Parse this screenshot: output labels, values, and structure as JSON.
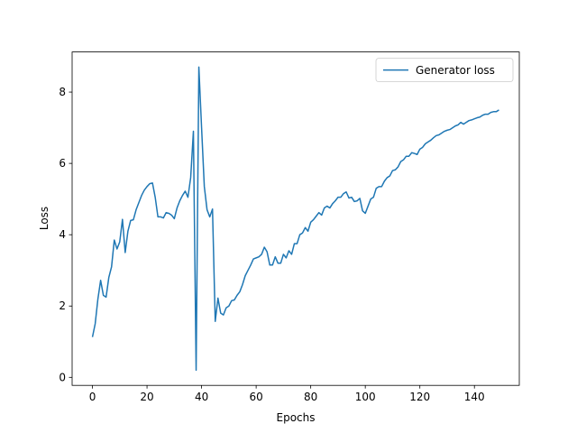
{
  "chart_data": {
    "type": "line",
    "xlabel": "Epochs",
    "ylabel": "Loss",
    "x": [
      0,
      1,
      2,
      3,
      4,
      5,
      6,
      7,
      8,
      9,
      10,
      11,
      12,
      13,
      14,
      15,
      16,
      17,
      18,
      19,
      20,
      21,
      22,
      23,
      24,
      25,
      26,
      27,
      28,
      29,
      30,
      31,
      32,
      33,
      34,
      35,
      36,
      37,
      38,
      39,
      40,
      41,
      42,
      43,
      44,
      45,
      46,
      47,
      48,
      49,
      50,
      51,
      52,
      53,
      54,
      55,
      56,
      57,
      58,
      59,
      60,
      61,
      62,
      63,
      64,
      65,
      66,
      67,
      68,
      69,
      70,
      71,
      72,
      73,
      74,
      75,
      76,
      77,
      78,
      79,
      80,
      81,
      82,
      83,
      84,
      85,
      86,
      87,
      88,
      89,
      90,
      91,
      92,
      93,
      94,
      95,
      96,
      97,
      98,
      99,
      100,
      101,
      102,
      103,
      104,
      105,
      106,
      107,
      108,
      109,
      110,
      111,
      112,
      113,
      114,
      115,
      116,
      117,
      118,
      119,
      120,
      121,
      122,
      123,
      124,
      125,
      126,
      127,
      128,
      129,
      130,
      131,
      132,
      133,
      134,
      135,
      136,
      137,
      138,
      139,
      140,
      141,
      142,
      143,
      144,
      145,
      146,
      147,
      148,
      149
    ],
    "series": [
      {
        "name": "Generator loss",
        "color": "#1f77b4",
        "values": [
          1.13,
          1.5,
          2.2,
          2.72,
          2.3,
          2.25,
          2.8,
          3.1,
          3.85,
          3.6,
          3.8,
          4.43,
          3.5,
          4.1,
          4.4,
          4.42,
          4.7,
          4.9,
          5.1,
          5.25,
          5.35,
          5.43,
          5.45,
          5.05,
          4.5,
          4.5,
          4.47,
          4.62,
          4.6,
          4.55,
          4.45,
          4.75,
          4.95,
          5.1,
          5.22,
          5.05,
          5.6,
          6.9,
          0.2,
          8.7,
          7.0,
          5.35,
          4.7,
          4.5,
          4.72,
          1.57,
          2.22,
          1.8,
          1.75,
          1.95,
          2.0,
          2.15,
          2.17,
          2.3,
          2.4,
          2.6,
          2.85,
          3.0,
          3.15,
          3.32,
          3.35,
          3.38,
          3.45,
          3.65,
          3.52,
          3.15,
          3.15,
          3.38,
          3.2,
          3.2,
          3.45,
          3.35,
          3.55,
          3.45,
          3.75,
          3.75,
          4.0,
          4.05,
          4.2,
          4.1,
          4.35,
          4.42,
          4.52,
          4.62,
          4.55,
          4.75,
          4.8,
          4.75,
          4.87,
          4.95,
          5.05,
          5.05,
          5.15,
          5.2,
          5.03,
          5.05,
          4.93,
          4.95,
          5.02,
          4.67,
          4.6,
          4.8,
          5.0,
          5.05,
          5.3,
          5.35,
          5.35,
          5.5,
          5.6,
          5.65,
          5.8,
          5.82,
          5.9,
          6.05,
          6.1,
          6.2,
          6.2,
          6.3,
          6.28,
          6.25,
          6.4,
          6.45,
          6.55,
          6.6,
          6.65,
          6.72,
          6.78,
          6.8,
          6.85,
          6.9,
          6.93,
          6.95,
          7.0,
          7.05,
          7.08,
          7.15,
          7.1,
          7.15,
          7.2,
          7.22,
          7.25,
          7.28,
          7.3,
          7.35,
          7.38,
          7.38,
          7.43,
          7.45,
          7.45,
          7.5
        ]
      }
    ],
    "xlim": [
      -7.45,
      156.45
    ],
    "xticks": [
      0,
      20,
      40,
      60,
      80,
      100,
      120,
      140
    ],
    "ylim": [
      -0.225,
      9.125
    ],
    "yticks": [
      0,
      2,
      4,
      6,
      8
    ],
    "legend": "upper right",
    "grid": false
  }
}
